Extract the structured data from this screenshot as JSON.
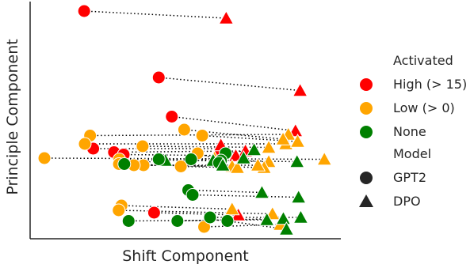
{
  "chart_data": {
    "type": "scatter",
    "xlabel": "Shift Component",
    "ylabel": "Principle Component",
    "xlim": [
      0,
      100
    ],
    "ylim": [
      0,
      100
    ],
    "grid": false,
    "legend_placement": "right",
    "legend": {
      "hue_title": "Activated",
      "hue_items": [
        {
          "label": "High (> 15)",
          "color": "#ff0000"
        },
        {
          "label": "Low (> 0)",
          "color": "#ffa500"
        },
        {
          "label": "None",
          "color": "#008000"
        }
      ],
      "style_title": "Model",
      "style_items": [
        {
          "label": "GPT2",
          "marker": "circle"
        },
        {
          "label": "DPO",
          "marker": "triangle"
        }
      ]
    },
    "colors": {
      "High": "#ff0000",
      "Low": "#ffa500",
      "None": "#008000",
      "connector": "#000000"
    },
    "pairs": [
      {
        "act": "High",
        "gpt2": [
          17.4,
          96.0
        ],
        "dpo": [
          63.1,
          93.0
        ]
      },
      {
        "act": "High",
        "gpt2": [
          41.4,
          68.0
        ],
        "dpo": [
          86.9,
          62.5
        ]
      },
      {
        "act": "High",
        "gpt2": [
          45.6,
          51.5
        ],
        "dpo": [
          85.4,
          45.5
        ]
      },
      {
        "act": "High",
        "gpt2": [
          20.3,
          38.0
        ],
        "dpo": [
          61.1,
          38.0
        ]
      },
      {
        "act": "High",
        "gpt2": [
          27.0,
          36.5
        ],
        "dpo": [
          69.3,
          37.0
        ]
      },
      {
        "act": "High",
        "gpt2": [
          30.1,
          35.5
        ],
        "dpo": [
          66.2,
          35.0
        ]
      },
      {
        "act": "High",
        "gpt2": [
          61.4,
          37.0
        ],
        "dpo": [
          61.4,
          39.5
        ]
      },
      {
        "act": "High",
        "gpt2": [
          39.9,
          11.0
        ],
        "dpo": [
          67.0,
          10.0
        ]
      },
      {
        "act": "Low",
        "gpt2": [
          4.6,
          34.0
        ],
        "dpo": [
          94.7,
          33.5
        ]
      },
      {
        "act": "Low",
        "gpt2": [
          19.3,
          43.5
        ],
        "dpo": [
          83.1,
          44.0
        ]
      },
      {
        "act": "Low",
        "gpt2": [
          17.6,
          40.0
        ],
        "dpo": [
          82.3,
          40.0
        ]
      },
      {
        "act": "Low",
        "gpt2": [
          49.6,
          46.0
        ],
        "dpo": [
          81.4,
          42.0
        ]
      },
      {
        "act": "Low",
        "gpt2": [
          55.4,
          43.5
        ],
        "dpo": [
          86.1,
          41.0
        ]
      },
      {
        "act": "Low",
        "gpt2": [
          36.2,
          39.0
        ],
        "dpo": [
          76.8,
          38.5
        ]
      },
      {
        "act": "Low",
        "gpt2": [
          53.9,
          36.0
        ],
        "dpo": [
          59.3,
          34.0
        ]
      },
      {
        "act": "Low",
        "gpt2": [
          28.7,
          33.5
        ],
        "dpo": [
          76.8,
          32.5
        ]
      },
      {
        "act": "Low",
        "gpt2": [
          28.6,
          31.5
        ],
        "dpo": [
          75.3,
          30.0
        ]
      },
      {
        "act": "Low",
        "gpt2": [
          36.5,
          31.0
        ],
        "dpo": [
          65.0,
          30.5
        ]
      },
      {
        "act": "Low",
        "gpt2": [
          48.5,
          30.5
        ],
        "dpo": [
          66.7,
          30.0
        ]
      },
      {
        "act": "Low",
        "gpt2": [
          33.4,
          31.0
        ],
        "dpo": [
          73.3,
          31.0
        ]
      },
      {
        "act": "Low",
        "gpt2": [
          29.4,
          14.0
        ],
        "dpo": [
          65.0,
          12.5
        ]
      },
      {
        "act": "Low",
        "gpt2": [
          28.5,
          12.0
        ],
        "dpo": [
          78.0,
          10.5
        ]
      },
      {
        "act": "Low",
        "gpt2": [
          56.0,
          5.0
        ],
        "dpo": [
          80.5,
          6.0
        ]
      },
      {
        "act": "None",
        "gpt2": [
          30.3,
          31.5
        ],
        "dpo": [
          43.5,
          33.0
        ]
      },
      {
        "act": "None",
        "gpt2": [
          41.4,
          33.5
        ],
        "dpo": [
          58.9,
          33.0
        ]
      },
      {
        "act": "None",
        "gpt2": [
          62.9,
          36.0
        ],
        "dpo": [
          72.1,
          37.5
        ]
      },
      {
        "act": "None",
        "gpt2": [
          61.4,
          33.0
        ],
        "dpo": [
          85.9,
          32.5
        ]
      },
      {
        "act": "None",
        "gpt2": [
          51.8,
          33.5
        ],
        "dpo": [
          68.7,
          34.0
        ]
      },
      {
        "act": "None",
        "gpt2": [
          60.8,
          32.0
        ],
        "dpo": [
          62.0,
          31.0
        ]
      },
      {
        "act": "None",
        "gpt2": [
          50.9,
          20.5
        ],
        "dpo": [
          74.6,
          19.5
        ]
      },
      {
        "act": "None",
        "gpt2": [
          52.3,
          18.5
        ],
        "dpo": [
          86.4,
          17.5
        ]
      },
      {
        "act": "None",
        "gpt2": [
          31.7,
          7.5
        ],
        "dpo": [
          76.2,
          8.0
        ]
      },
      {
        "act": "None",
        "gpt2": [
          47.4,
          7.5
        ],
        "dpo": [
          81.5,
          8.5
        ]
      },
      {
        "act": "None",
        "gpt2": [
          57.9,
          9.0
        ],
        "dpo": [
          87.1,
          9.0
        ]
      },
      {
        "act": "None",
        "gpt2": [
          63.5,
          7.5
        ],
        "dpo": [
          82.5,
          4.0
        ]
      }
    ]
  }
}
